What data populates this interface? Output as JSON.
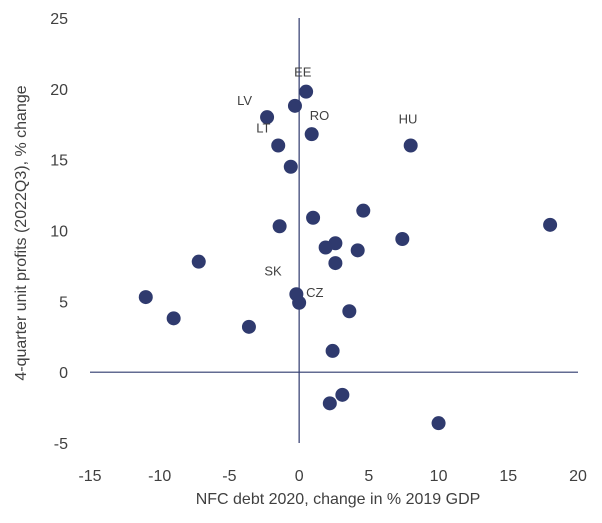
{
  "chart_data": {
    "type": "scatter",
    "title": "",
    "xlabel": "NFC debt 2020, change in % 2019 GDP",
    "ylabel": "4-quarter unit profits (2022Q3), % change",
    "xlim": [
      -15,
      20
    ],
    "ylim": [
      -5,
      25
    ],
    "x_ticks": [
      -15,
      -10,
      -5,
      0,
      5,
      10,
      15,
      20
    ],
    "y_ticks": [
      -5,
      0,
      5,
      10,
      15,
      20,
      25
    ],
    "grid": false,
    "legend": "none",
    "marker_color": "#2f3a6e",
    "axis_color": "#2f3a6e",
    "points": [
      {
        "x": 0.5,
        "y": 19.8,
        "label": "EE"
      },
      {
        "x": -0.3,
        "y": 18.8,
        "label": ""
      },
      {
        "x": -2.3,
        "y": 18.0,
        "label": "LV"
      },
      {
        "x": 0.9,
        "y": 16.8,
        "label": "RO"
      },
      {
        "x": -1.5,
        "y": 16.0,
        "label": "LT"
      },
      {
        "x": 8.0,
        "y": 16.0,
        "label": "HU"
      },
      {
        "x": -0.6,
        "y": 14.5,
        "label": ""
      },
      {
        "x": 4.6,
        "y": 11.4,
        "label": ""
      },
      {
        "x": 1.0,
        "y": 10.9,
        "label": ""
      },
      {
        "x": 18.0,
        "y": 10.4,
        "label": ""
      },
      {
        "x": -1.4,
        "y": 10.3,
        "label": ""
      },
      {
        "x": 7.4,
        "y": 9.4,
        "label": ""
      },
      {
        "x": 2.6,
        "y": 9.1,
        "label": ""
      },
      {
        "x": 1.9,
        "y": 8.8,
        "label": ""
      },
      {
        "x": 4.2,
        "y": 8.6,
        "label": ""
      },
      {
        "x": -7.2,
        "y": 7.8,
        "label": ""
      },
      {
        "x": 2.6,
        "y": 7.7,
        "label": ""
      },
      {
        "x": -0.2,
        "y": 5.5,
        "label": "SK"
      },
      {
        "x": -11.0,
        "y": 5.3,
        "label": ""
      },
      {
        "x": 0.0,
        "y": 4.9,
        "label": "CZ"
      },
      {
        "x": 3.6,
        "y": 4.3,
        "label": ""
      },
      {
        "x": -9.0,
        "y": 3.8,
        "label": ""
      },
      {
        "x": -3.6,
        "y": 3.2,
        "label": ""
      },
      {
        "x": 2.4,
        "y": 1.5,
        "label": ""
      },
      {
        "x": 3.1,
        "y": -1.6,
        "label": ""
      },
      {
        "x": 2.2,
        "y": -2.2,
        "label": ""
      },
      {
        "x": 10.0,
        "y": -3.6,
        "label": ""
      }
    ]
  }
}
